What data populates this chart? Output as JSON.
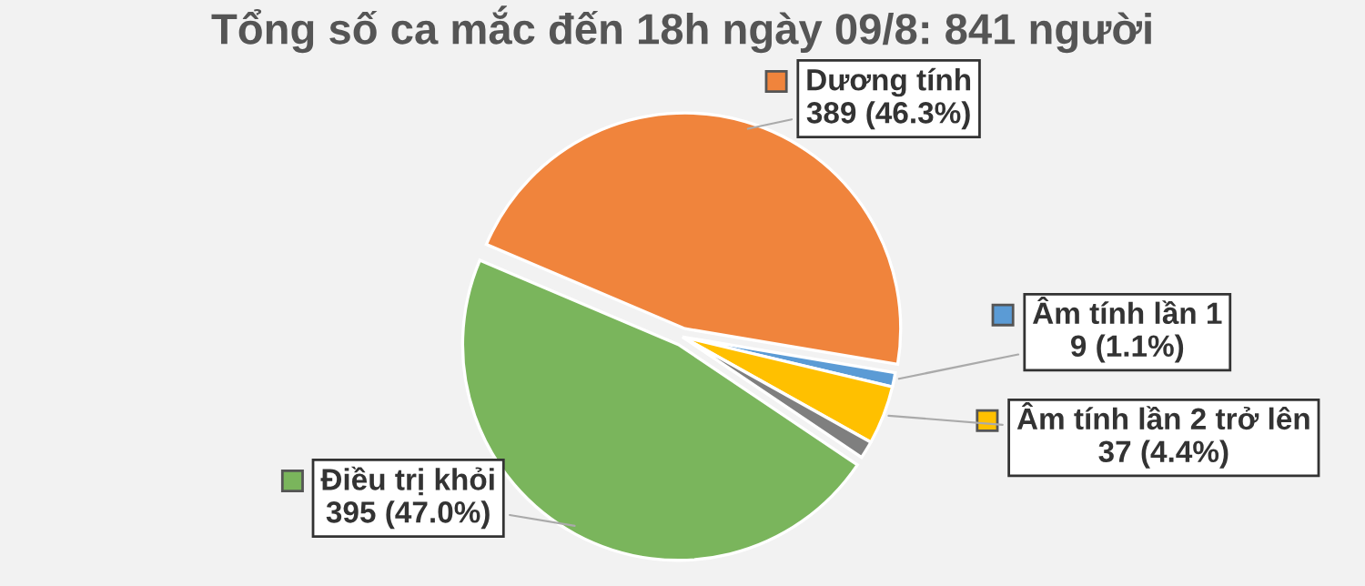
{
  "chart_data": {
    "type": "pie",
    "title": "Tổng số ca mắc đến 18h ngày 09/8: 841 người",
    "categories": [
      "Dương tính",
      "Âm tính lần 1",
      "Âm tính lần 2 trở lên",
      null,
      "Điều trị khỏi"
    ],
    "values": [
      389,
      9,
      37,
      11,
      395
    ],
    "value_labels": [
      "389 (46.3%)",
      "9 (1.1%)",
      "37 (4.4%)",
      null,
      "395 (47.0%)"
    ],
    "legend": "right",
    "colors": [
      "#f0843c",
      "#5b9bd5",
      "#ffc000",
      "#7f7f7f",
      "#7ab55c"
    ]
  }
}
